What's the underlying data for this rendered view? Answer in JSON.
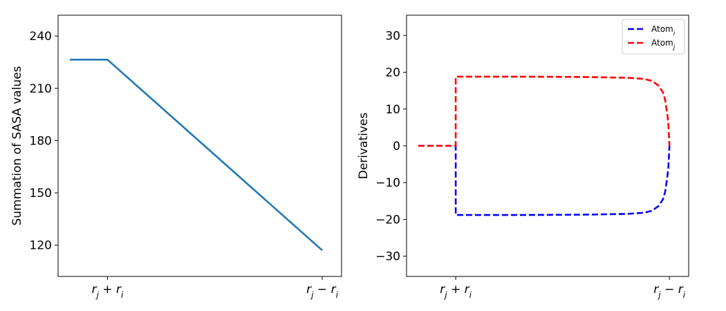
{
  "chart_data": [
    {
      "type": "line",
      "ylabel": "Summation of SASA values",
      "xticks": [
        {
          "x": 0.0,
          "base": "r",
          "sub": "j",
          "op": "+",
          "base2": "r",
          "sub2": "i"
        },
        {
          "x": 1.0,
          "base": "r",
          "sub": "j",
          "op": "−",
          "base2": "r",
          "sub2": "i"
        }
      ],
      "yticks": [
        120,
        150,
        180,
        210,
        240
      ],
      "xlim": [
        -0.23,
        1.09
      ],
      "ylim": [
        102,
        252
      ],
      "grid": false,
      "series": [
        {
          "color": "#1f77b4",
          "style": "solid",
          "x": [
            -0.175,
            0.0,
            1.0
          ],
          "y": [
            226.5,
            226.5,
            117.0
          ]
        }
      ]
    },
    {
      "type": "line",
      "ylabel": "Derivatives",
      "xticks": [
        {
          "x": 0.0,
          "base": "r",
          "sub": "j",
          "op": "+",
          "base2": "r",
          "sub2": "i"
        },
        {
          "x": 1.0,
          "base": "r",
          "sub": "j",
          "op": "−",
          "base2": "r",
          "sub2": "i"
        }
      ],
      "yticks": [
        -30,
        -20,
        -10,
        0,
        10,
        20,
        30
      ],
      "xlim": [
        -0.23,
        1.09
      ],
      "ylim": [
        -35.5,
        35.5
      ],
      "grid": false,
      "legend_position": "top-right",
      "series": [
        {
          "name_base": "Atom",
          "name_sub": "i",
          "color": "#0000ff",
          "style": "dashed",
          "x": [
            -0.175,
            0.0,
            0.0,
            0.3,
            0.6,
            0.8,
            0.88,
            0.92,
            0.95,
            0.97,
            0.98,
            0.99,
            0.995,
            1.0
          ],
          "y": [
            0.0,
            0.0,
            -18.8,
            -18.8,
            -18.7,
            -18.5,
            -18.2,
            -17.6,
            -16.3,
            -14.5,
            -12.5,
            -8.5,
            -6.0,
            0.0
          ]
        },
        {
          "name_base": "Atom",
          "name_sub": "j",
          "color": "#ff0000",
          "style": "dashed",
          "x": [
            -0.175,
            0.0,
            0.0,
            0.3,
            0.6,
            0.8,
            0.88,
            0.92,
            0.95,
            0.97,
            0.98,
            0.99,
            0.995,
            1.0
          ],
          "y": [
            0.0,
            0.0,
            18.8,
            18.8,
            18.7,
            18.5,
            18.2,
            17.6,
            16.3,
            14.5,
            12.5,
            8.5,
            6.0,
            0.0
          ]
        }
      ]
    }
  ]
}
